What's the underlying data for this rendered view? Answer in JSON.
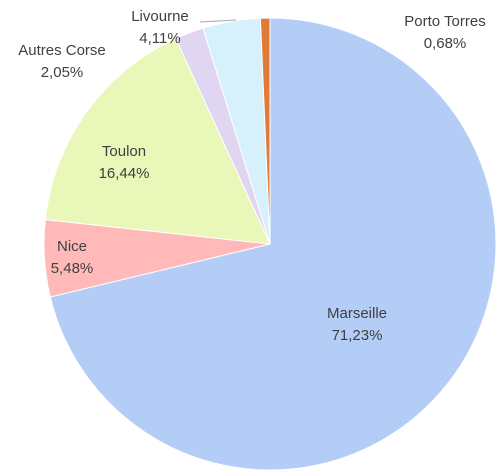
{
  "chart_data": {
    "type": "pie",
    "categories": [
      "Marseille",
      "Nice",
      "Toulon",
      "Autres Corse",
      "Livourne",
      "Porto Torres"
    ],
    "values": [
      71.23,
      5.48,
      16.44,
      2.05,
      4.11,
      0.68
    ],
    "value_labels": [
      "71,23%",
      "5,48%",
      "16,44%",
      "2,05%",
      "4,11%",
      "0,68%"
    ],
    "colors": [
      "#b4cdf7",
      "#ffb9b9",
      "#e9f7b8",
      "#e0d6f2",
      "#d6f1fb",
      "#e07b39"
    ]
  }
}
